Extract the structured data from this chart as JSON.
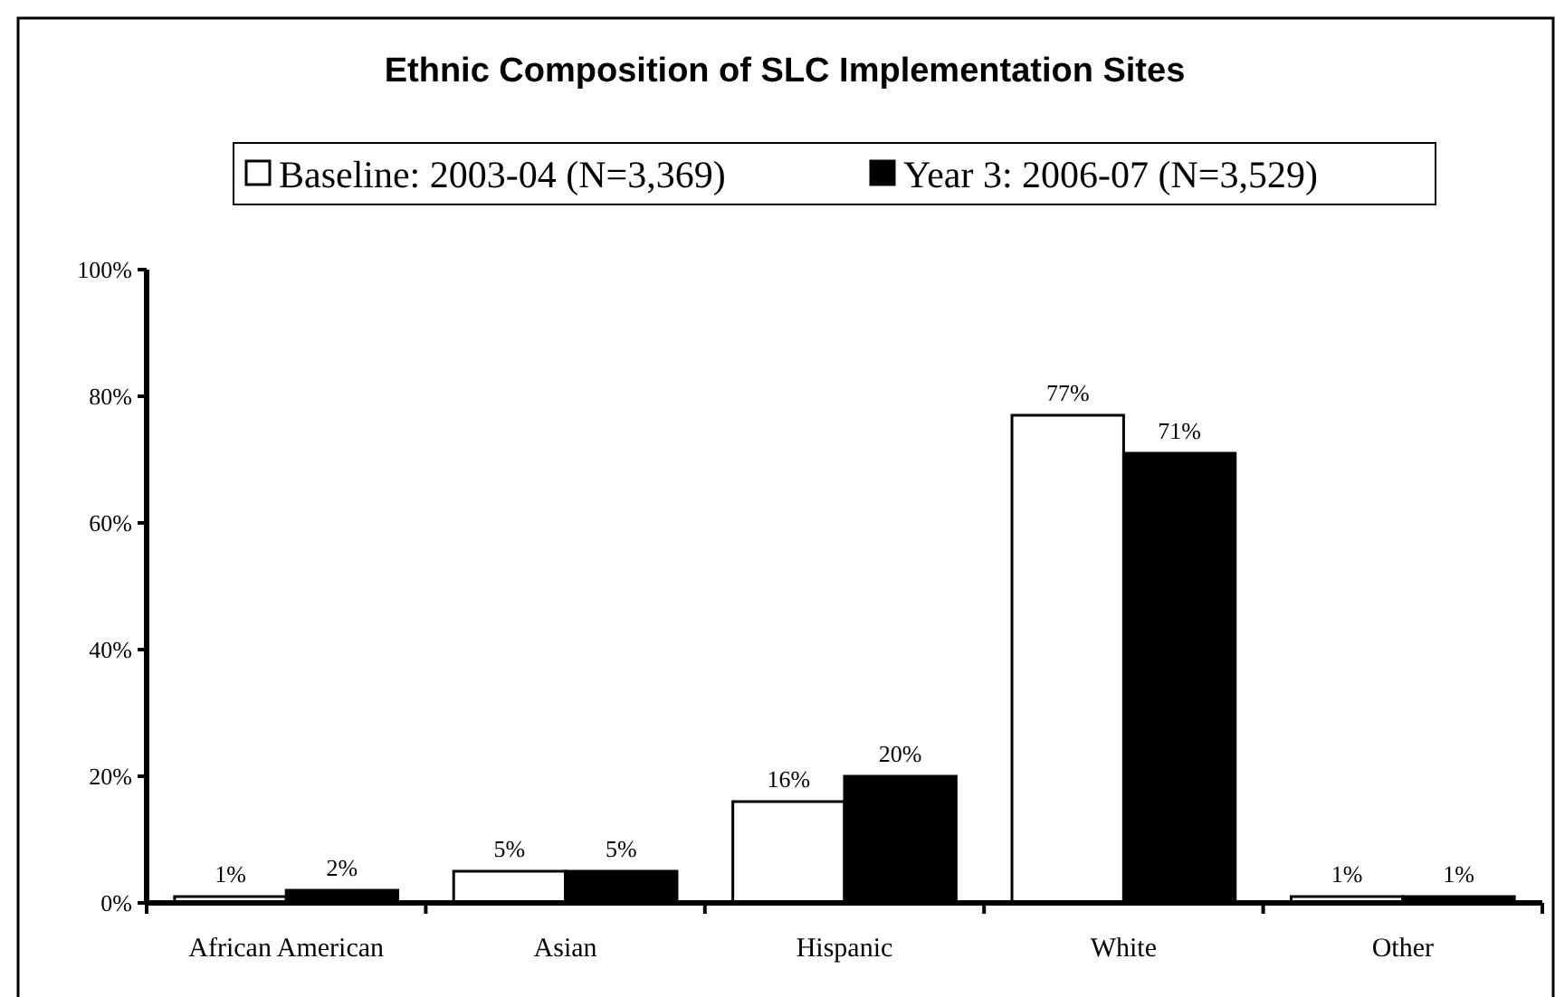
{
  "chart_data": {
    "type": "bar",
    "title": "Ethnic Composition of SLC Implementation Sites",
    "categories": [
      "African American",
      "Asian",
      "Hispanic",
      "White",
      "Other"
    ],
    "series": [
      {
        "name": "Baseline: 2003-04 (N=3,369)",
        "color": "#ffffff",
        "values": [
          1,
          5,
          16,
          77,
          1
        ],
        "value_labels": [
          "1%",
          "5%",
          "16%",
          "77%",
          "1%"
        ]
      },
      {
        "name": "Year 3: 2006-07 (N=3,529)",
        "color": "#000000",
        "values": [
          2,
          5,
          20,
          71,
          1
        ],
        "value_labels": [
          "2%",
          "5%",
          "20%",
          "71%",
          "1%"
        ]
      }
    ],
    "ylim": [
      0,
      100
    ],
    "yticks": [
      {
        "value": 0,
        "label": "0%"
      },
      {
        "value": 20,
        "label": "20%"
      },
      {
        "value": 40,
        "label": "40%"
      },
      {
        "value": 60,
        "label": "60%"
      },
      {
        "value": 80,
        "label": "80%"
      },
      {
        "value": 100,
        "label": "100%"
      }
    ],
    "legend": "top",
    "grid": false
  }
}
